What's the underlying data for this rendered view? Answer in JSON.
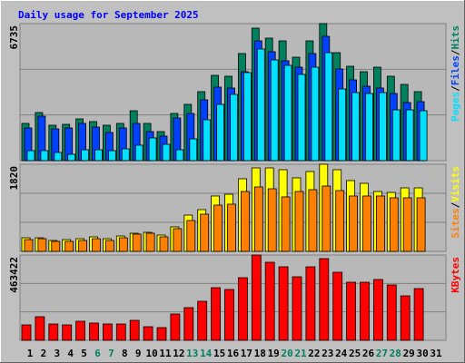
{
  "chart_data": {
    "type": "webalizer-daily",
    "title": "Daily usage for September 2025",
    "legend_separator": "/",
    "categories": [
      "1",
      "2",
      "3",
      "4",
      "5",
      "6",
      "7",
      "8",
      "9",
      "10",
      "11",
      "12",
      "13",
      "14",
      "15",
      "16",
      "17",
      "18",
      "19",
      "20",
      "21",
      "22",
      "23",
      "24",
      "25",
      "26",
      "27",
      "28",
      "29",
      "30",
      "31"
    ],
    "category_colors": [
      "#000000",
      "#000000",
      "#000000",
      "#000000",
      "#000000",
      "#00805c",
      "#00805c",
      "#000000",
      "#000000",
      "#000000",
      "#000000",
      "#000000",
      "#00805c",
      "#00805c",
      "#000000",
      "#000000",
      "#000000",
      "#000000",
      "#000000",
      "#00805c",
      "#00805c",
      "#000000",
      "#000000",
      "#000000",
      "#000000",
      "#000000",
      "#00805c",
      "#00805c",
      "#000000",
      "#000000",
      "#000000"
    ],
    "panels": [
      {
        "ylim": [
          0,
          6735
        ],
        "yticks": [
          6735
        ],
        "grid_lines": [
          2245,
          4490
        ],
        "series": [
          {
            "name": "Hits",
            "color": "#00805c",
            "values": [
              1829,
              2364,
              1740,
              1784,
              2052,
              1918,
              1740,
              1829,
              2453,
              1829,
              1427,
              2319,
              2765,
              3390,
              4192,
              4148,
              5263,
              6512,
              6021,
              5887,
              5084,
              5887,
              6735,
              5307,
              4638,
              4371,
              4594,
              4148,
              3746,
              3390,
              null
            ]
          },
          {
            "name": "Files",
            "color": "#0040ff",
            "values": [
              1606,
              2185,
              1561,
              1606,
              1829,
              1650,
              1383,
              1606,
              1829,
              1427,
              1204,
              2096,
              2319,
              2988,
              3613,
              3568,
              4371,
              5887,
              5352,
              4906,
              4594,
              5263,
              6110,
              4504,
              3969,
              3657,
              3568,
              3300,
              2854,
              2899,
              null
            ]
          },
          {
            "name": "Pages",
            "color": "#00e0ff",
            "values": [
              491,
              491,
              401,
              312,
              535,
              535,
              491,
              580,
              758,
              1115,
              803,
              535,
              1070,
              2007,
              2765,
              3256,
              4326,
              5486,
              4951,
              4683,
              4237,
              4594,
              5307,
              3523,
              3345,
              3300,
              3345,
              2497,
              2497,
              2453,
              null
            ]
          }
        ]
      },
      {
        "ylim": [
          0,
          1820
        ],
        "yticks": [
          1820
        ],
        "grid_lines": [
          607,
          1213
        ],
        "series": [
          {
            "name": "Visits",
            "color": "#ffff00",
            "values": [
              284,
              284,
              228,
              246,
              265,
              303,
              265,
              322,
              379,
              398,
              341,
              512,
              758,
              872,
              1157,
              1194,
              1517,
              1744,
              1744,
              1706,
              1536,
              1668,
              1820,
              1706,
              1479,
              1422,
              1251,
              1232,
              1327,
              1327,
              null
            ]
          },
          {
            "name": "Sites",
            "color": "#ff8000",
            "values": [
              246,
              265,
              209,
              209,
              228,
              265,
              228,
              284,
              360,
              379,
              303,
              474,
              645,
              777,
              967,
              986,
              1251,
              1346,
              1308,
              1138,
              1251,
              1289,
              1365,
              1270,
              1157,
              1157,
              1157,
              1119,
              1119,
              1119,
              null
            ]
          }
        ]
      },
      {
        "ylim": [
          0,
          463422
        ],
        "yticks": [
          463422
        ],
        "grid_lines": [
          154474,
          308948
        ],
        "series": [
          {
            "name": "KBytes",
            "color": "#ff0000",
            "values": [
              83810,
              128180,
              88740,
              83810,
              103530,
              93670,
              88740,
              88740,
              108460,
              73950,
              69020,
              142970,
              177480,
              211990,
              285940,
              276080,
              340170,
              463422,
              423980,
              399330,
              345100,
              399330,
              443700,
              369750,
              315520,
              315520,
              330310,
              300730,
              241570,
              281010,
              null
            ]
          }
        ]
      }
    ]
  }
}
